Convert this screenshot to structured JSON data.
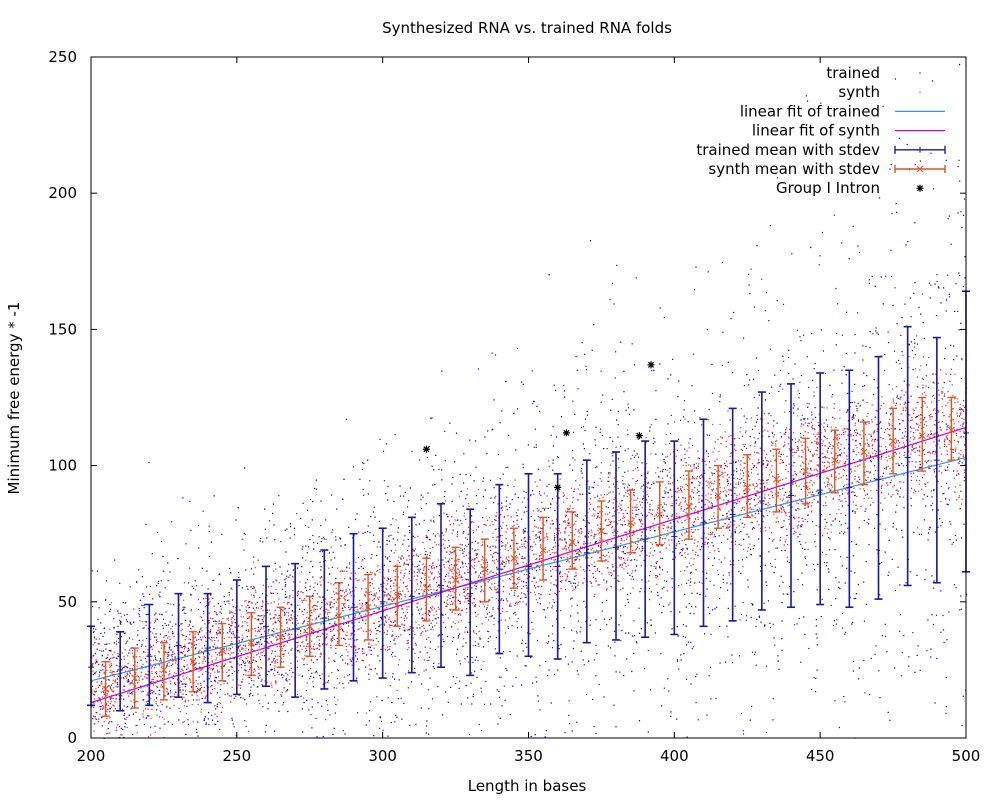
{
  "chart_data": {
    "type": "scatter",
    "title": "Synthesized RNA vs. trained RNA folds",
    "xlabel": "Length in bases",
    "ylabel": "Minimum free energy * -1",
    "xlim": [
      200,
      500
    ],
    "ylim": [
      0,
      250
    ],
    "xticks": [
      200,
      250,
      300,
      350,
      400,
      450,
      500
    ],
    "yticks": [
      0,
      50,
      100,
      150,
      200,
      250
    ],
    "grid": false,
    "legend_position": "top-right",
    "colors": {
      "trained": "#0000cc",
      "synth": "#ee2222",
      "linear_fit_trained": "#3399dd",
      "linear_fit_synth": "#cc00cc",
      "trained_mean": "#1a1a99",
      "synth_mean": "#dd5522",
      "group_i_intron": "#000000"
    },
    "series": [
      {
        "key": "trained",
        "name": "trained",
        "style": "dots"
      },
      {
        "key": "synth",
        "name": "synth",
        "style": "dots"
      },
      {
        "key": "linear_fit_trained",
        "name": "linear fit of trained",
        "style": "line",
        "x": [
          200,
          500
        ],
        "y": [
          21,
          103
        ]
      },
      {
        "key": "linear_fit_synth",
        "name": "linear fit of synth",
        "style": "line",
        "x": [
          200,
          500
        ],
        "y": [
          13,
          114
        ]
      },
      {
        "key": "trained_mean",
        "name": "trained mean with stdev",
        "style": "errorbars",
        "x": [
          200,
          210,
          220,
          230,
          240,
          250,
          260,
          270,
          280,
          290,
          300,
          310,
          320,
          330,
          340,
          350,
          360,
          370,
          380,
          390,
          400,
          410,
          420,
          430,
          440,
          450,
          460,
          470,
          480,
          490,
          500
        ],
        "mean": [
          26,
          25,
          30,
          34,
          33,
          37,
          41,
          40,
          44,
          48,
          50,
          52,
          56,
          53,
          62,
          63,
          63,
          68,
          70,
          73,
          74,
          79,
          82,
          87,
          89,
          91,
          92,
          95,
          103,
          102,
          112
        ],
        "low": [
          12,
          10,
          12,
          15,
          13,
          16,
          19,
          15,
          18,
          21,
          22,
          24,
          26,
          23,
          31,
          30,
          29,
          35,
          36,
          37,
          38,
          41,
          43,
          47,
          48,
          49,
          48,
          51,
          56,
          57,
          61
        ],
        "high": [
          41,
          39,
          49,
          53,
          53,
          58,
          63,
          64,
          69,
          75,
          77,
          81,
          86,
          84,
          93,
          97,
          97,
          102,
          105,
          109,
          109,
          117,
          121,
          127,
          130,
          134,
          135,
          140,
          151,
          147,
          164
        ]
      },
      {
        "key": "synth_mean",
        "name": "synth mean with stdev",
        "style": "errorbars",
        "x": [
          205,
          215,
          225,
          235,
          245,
          255,
          265,
          275,
          285,
          295,
          305,
          315,
          325,
          335,
          345,
          355,
          365,
          375,
          385,
          395,
          405,
          415,
          425,
          435,
          445,
          455,
          465,
          475,
          485,
          495
        ],
        "mean": [
          18,
          22,
          25,
          28,
          32,
          35,
          37,
          41,
          45,
          48,
          52,
          55,
          58,
          62,
          66,
          69,
          72,
          76,
          79,
          82,
          85,
          89,
          92,
          95,
          98,
          102,
          105,
          109,
          111,
          113
        ],
        "low": [
          8,
          11,
          14,
          17,
          21,
          23,
          26,
          30,
          34,
          36,
          41,
          43,
          47,
          50,
          55,
          58,
          62,
          65,
          68,
          71,
          73,
          77,
          81,
          83,
          86,
          90,
          93,
          97,
          98,
          102
        ],
        "high": [
          28,
          33,
          35,
          39,
          42,
          46,
          48,
          52,
          57,
          60,
          63,
          66,
          70,
          73,
          77,
          81,
          83,
          87,
          91,
          94,
          98,
          100,
          104,
          106,
          110,
          113,
          116,
          121,
          125,
          125
        ]
      },
      {
        "key": "group_i_intron",
        "name": "Group I Intron",
        "style": "stars",
        "x": [
          315,
          360,
          363,
          388,
          392
        ],
        "y": [
          106,
          92,
          112,
          111,
          137
        ]
      }
    ]
  }
}
